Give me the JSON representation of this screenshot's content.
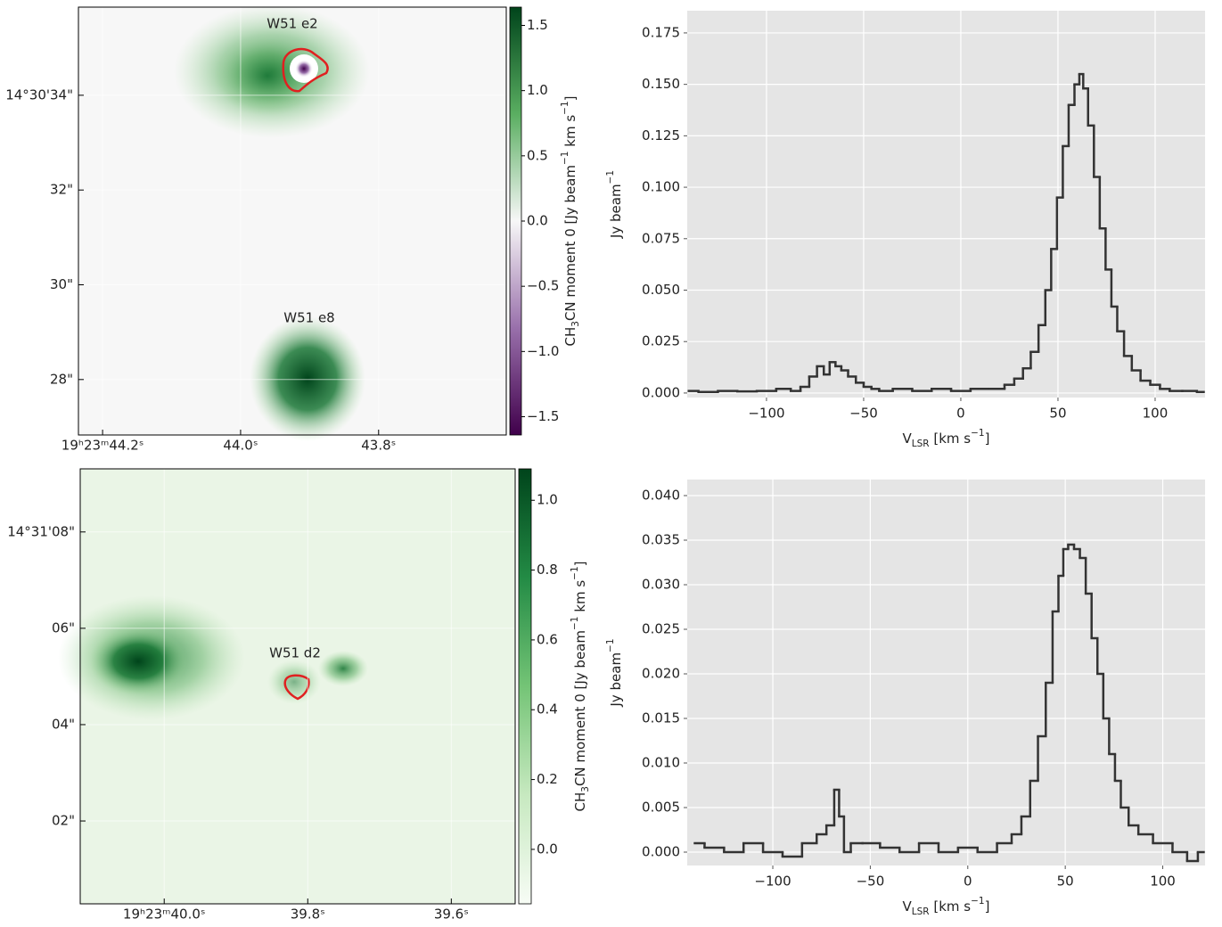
{
  "chart_data": [
    {
      "type": "image",
      "annotations": [
        "W51 e2",
        "W51 e8"
      ],
      "xlim": [
        44.235,
        43.615
      ],
      "ylim": [
        26.83,
        35.86
      ],
      "xticks": [
        {
          "value": 44.2,
          "label": "19ʰ23ᵐ44.2ˢ"
        },
        {
          "value": 44.0,
          "label": "44.0ˢ"
        },
        {
          "value": 43.8,
          "label": "43.8ˢ"
        }
      ],
      "yticks": [
        {
          "value": 34,
          "label": "14°30'34\""
        },
        {
          "value": 32,
          "label": "32\""
        },
        {
          "value": 30,
          "label": "30\""
        },
        {
          "value": 28,
          "label": "28\""
        }
      ],
      "colorbar": {
        "clim": [
          -1.64,
          1.64
        ],
        "colormap": [
          "#40004b",
          "#9970ab",
          "#f7f7f7",
          "#5aae61",
          "#00441b"
        ],
        "ticks": [
          {
            "value": 1.5,
            "label": "1.5"
          },
          {
            "value": 1.0,
            "label": "1.0"
          },
          0.5,
          {
            "value": 0.0,
            "label": "0.0"
          },
          {
            "value": -0.5,
            "label": "−0.5"
          },
          {
            "value": -1.0,
            "label": "−1.0"
          },
          {
            "value": -1.5,
            "label": "−1.5"
          }
        ],
        "label": [
          "CH",
          "3",
          "CN moment 0 [Jy beam",
          "−1",
          " km s",
          "−1",
          "]"
        ]
      }
    },
    {
      "type": "step",
      "color": "#333333",
      "background": "#e5e5e5",
      "grid": true,
      "xlabel": [
        "V",
        "LSR",
        " [km s",
        "−1",
        "]"
      ],
      "ylabel": [
        "Jy beam",
        "−1"
      ],
      "xlim": [
        -140.8,
        125.7
      ],
      "ylim": [
        -0.0022,
        0.1858
      ],
      "xticks": [
        {
          "value": -100,
          "label": "−100"
        },
        {
          "value": -50,
          "label": "−50"
        },
        0,
        50,
        100
      ],
      "yticks": [
        {
          "value": 0,
          "label": "0.000"
        },
        {
          "value": 0.025,
          "label": "0.025"
        },
        {
          "value": 0.05,
          "label": "0.050"
        },
        {
          "value": 0.075,
          "label": "0.075"
        },
        {
          "value": 0.1,
          "label": "0.100"
        },
        {
          "value": 0.125,
          "label": "0.125"
        },
        {
          "value": 0.15,
          "label": "0.150"
        },
        {
          "value": 0.175,
          "label": "0.175"
        }
      ],
      "x": [
        -140,
        -130,
        -120,
        -110,
        -100,
        -90,
        -85,
        -80,
        -76,
        -72,
        -69,
        -66,
        -63,
        -60,
        -56,
        -52,
        -48,
        -44,
        -40,
        -30,
        -20,
        -10,
        0,
        10,
        20,
        25,
        30,
        34,
        38,
        42,
        45,
        48,
        51,
        54,
        57,
        60,
        62,
        64,
        67,
        70,
        73,
        76,
        79,
        82,
        86,
        90,
        95,
        100,
        105,
        110,
        118,
        125
      ],
      "values": [
        0.001,
        0.0005,
        0.001,
        0.0008,
        0.001,
        0.002,
        0.001,
        0.003,
        0.008,
        0.013,
        0.009,
        0.015,
        0.013,
        0.011,
        0.008,
        0.005,
        0.003,
        0.002,
        0.001,
        0.002,
        0.001,
        0.002,
        0.001,
        0.002,
        0.002,
        0.004,
        0.007,
        0.012,
        0.02,
        0.033,
        0.05,
        0.07,
        0.095,
        0.12,
        0.14,
        0.15,
        0.155,
        0.148,
        0.13,
        0.105,
        0.08,
        0.06,
        0.042,
        0.03,
        0.018,
        0.011,
        0.006,
        0.004,
        0.002,
        0.001,
        0.001,
        0.0005
      ]
    },
    {
      "type": "image",
      "annotations": [
        "W51 d2"
      ],
      "xlim": [
        40.117,
        39.511
      ],
      "ylim": [
        0.28,
        9.31
      ],
      "xticks": [
        {
          "value": 40.0,
          "label": "19ʰ23ᵐ40.0ˢ"
        },
        {
          "value": 39.8,
          "label": "39.8ˢ"
        },
        {
          "value": 39.6,
          "label": "39.6ˢ"
        }
      ],
      "yticks": [
        {
          "value": 8,
          "label": "14°31'08\""
        },
        {
          "value": 6,
          "label": "06\""
        },
        {
          "value": 4,
          "label": "04\""
        },
        {
          "value": 2,
          "label": "02\""
        }
      ],
      "colorbar": {
        "clim": [
          -0.156,
          1.09
        ],
        "colormap": [
          "#f7fcf5",
          "#c7e9c0",
          "#74c476",
          "#238b45",
          "#00441b"
        ],
        "ticks": [
          {
            "value": 1.0,
            "label": "1.0"
          },
          0.8,
          0.6,
          0.4,
          0.2,
          {
            "value": 0.0,
            "label": "0.0"
          }
        ],
        "label": [
          "CH",
          "3",
          "CN moment 0 [Jy beam",
          "−1",
          " km s",
          "−1",
          "]"
        ]
      }
    },
    {
      "type": "step",
      "color": "#333333",
      "background": "#e5e5e5",
      "grid": true,
      "xlabel": [
        "V",
        "LSR",
        " [km s",
        "−1",
        "]"
      ],
      "ylabel": [
        "Jy beam",
        "−1"
      ],
      "xlim": [
        -143.9,
        121.7
      ],
      "ylim": [
        -0.0015,
        0.0418
      ],
      "xticks": [
        {
          "value": -100,
          "label": "−100"
        },
        {
          "value": -50,
          "label": "−50"
        },
        0,
        50,
        100
      ],
      "yticks": [
        {
          "value": 0,
          "label": "0.000"
        },
        0.005,
        {
          "value": 0.01,
          "label": "0.010"
        },
        0.015,
        {
          "value": 0.02,
          "label": "0.020"
        },
        0.025,
        {
          "value": 0.03,
          "label": "0.030"
        },
        0.035,
        {
          "value": 0.04,
          "label": "0.040"
        }
      ],
      "x": [
        -140,
        -130,
        -120,
        -110,
        -100,
        -90,
        -80,
        -75,
        -70,
        -67,
        -65,
        -62,
        -58,
        -50,
        -40,
        -30,
        -20,
        -10,
        0,
        10,
        20,
        25,
        30,
        34,
        38,
        42,
        45,
        48,
        50,
        53,
        56,
        59,
        62,
        65,
        68,
        71,
        74,
        77,
        80,
        85,
        90,
        100,
        110,
        115,
        121
      ],
      "values": [
        0.001,
        0.0005,
        0.0,
        0.001,
        0.0,
        -0.0005,
        0.001,
        0.002,
        0.003,
        0.007,
        0.004,
        0.0,
        0.001,
        0.001,
        0.0005,
        0.0,
        0.001,
        0.0,
        0.0005,
        0.0,
        0.001,
        0.002,
        0.004,
        0.008,
        0.013,
        0.019,
        0.027,
        0.031,
        0.034,
        0.0345,
        0.034,
        0.033,
        0.029,
        0.024,
        0.02,
        0.015,
        0.011,
        0.008,
        0.005,
        0.003,
        0.002,
        0.001,
        0.0,
        -0.001,
        0.0
      ]
    }
  ]
}
